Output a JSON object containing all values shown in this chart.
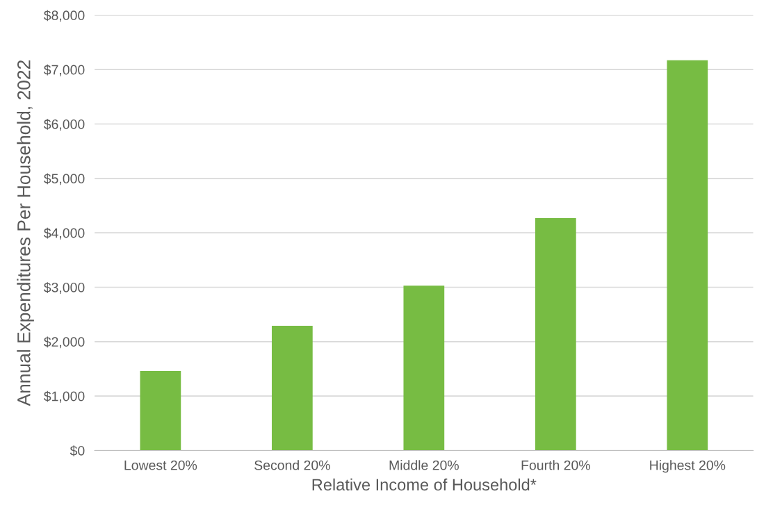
{
  "chart_data": {
    "type": "bar",
    "xlabel": "Relative Income of Household*",
    "ylabel": "Annual Expenditures Per Household, 2022",
    "categories": [
      "Lowest 20%",
      "Second 20%",
      "Middle 20%",
      "Fourth 20%",
      "Highest 20%"
    ],
    "values": [
      1460,
      2290,
      3030,
      4270,
      7170
    ],
    "color": "#77bc43",
    "ylim": [
      0,
      8000
    ],
    "yticks": [
      {
        "value": 0,
        "label": "$0"
      },
      {
        "value": 1000,
        "label": "$1,000"
      },
      {
        "value": 2000,
        "label": "$2,000"
      },
      {
        "value": 3000,
        "label": "$3,000"
      },
      {
        "value": 4000,
        "label": "$4,000"
      },
      {
        "value": 5000,
        "label": "$5,000"
      },
      {
        "value": 6000,
        "label": "$6,000"
      },
      {
        "value": 7000,
        "label": "$7,000"
      },
      {
        "value": 8000,
        "label": "$8,000"
      }
    ],
    "grid": "y"
  }
}
